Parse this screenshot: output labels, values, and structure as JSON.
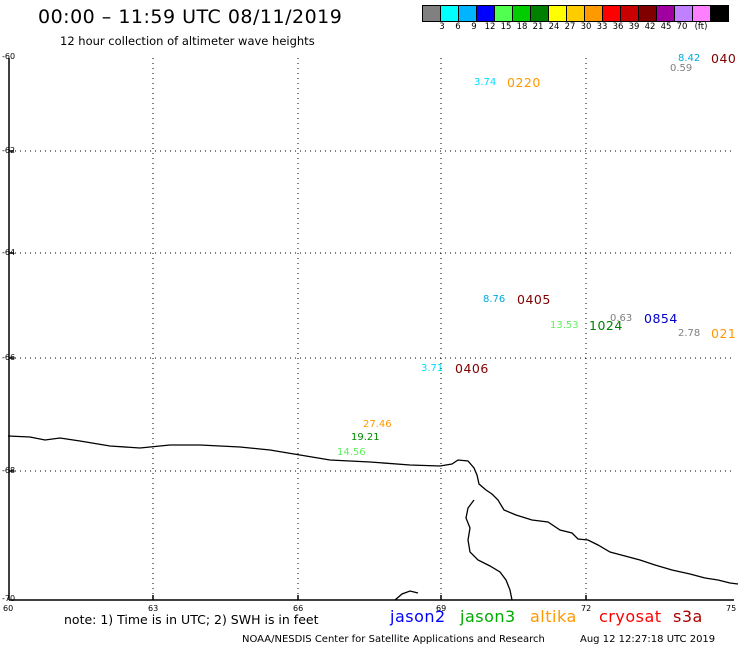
{
  "header": {
    "title": "00:00 – 11:59 UTC 08/11/2019",
    "subtitle": "12 hour collection of altimeter wave heights"
  },
  "legend": {
    "colors": [
      "#808080",
      "#00ffff",
      "#00b4ff",
      "#0000ff",
      "#50ff50",
      "#00cc00",
      "#008000",
      "#ffff00",
      "#ffcc00",
      "#ff9900",
      "#ff0000",
      "#c80000",
      "#800000",
      "#a000a0",
      "#c080ff",
      "#ff80ff",
      "#000000"
    ],
    "labels": [
      "3",
      "6",
      "9",
      "12",
      "15",
      "18",
      "21",
      "24",
      "27",
      "30",
      "33",
      "36",
      "39",
      "42",
      "45",
      "70",
      "(ft)"
    ]
  },
  "axes": {
    "lat_ticks": [
      "-60",
      "-62",
      "-64",
      "-66",
      "-68",
      "-70"
    ],
    "lon_ticks": [
      "60",
      "63",
      "66",
      "69",
      "72",
      "75"
    ]
  },
  "observations": [
    {
      "text": "8.42",
      "color": "#00aadd"
    },
    {
      "text": "0.59",
      "color": "#808080"
    },
    {
      "text": "3.74",
      "color": "#00ddff"
    },
    {
      "text": "8.76",
      "color": "#00aadd"
    },
    {
      "text": "0.63",
      "color": "#808080"
    },
    {
      "text": "2.78",
      "color": "#808080"
    },
    {
      "text": "13.53",
      "color": "#60ee60"
    },
    {
      "text": "3.71",
      "color": "#00ddff"
    },
    {
      "text": "27.46",
      "color": "#ff9900"
    },
    {
      "text": "19.21",
      "color": "#008800"
    },
    {
      "text": "14.56",
      "color": "#60ee60"
    }
  ],
  "passes": [
    {
      "text": "040",
      "color": "#800000"
    },
    {
      "text": "0220",
      "color": "#ff9900"
    },
    {
      "text": "0405",
      "color": "#800000"
    },
    {
      "text": "1024",
      "color": "#008000"
    },
    {
      "text": "0854",
      "color": "#0000cc"
    },
    {
      "text": "021",
      "color": "#ff9900"
    },
    {
      "text": "0406",
      "color": "#800000"
    }
  ],
  "footer": {
    "note": "note: 1) Time is in UTC; 2) SWH is in feet",
    "satellites": [
      {
        "name": "jason2",
        "color": "#0000ff"
      },
      {
        "name": "jason3",
        "color": "#00aa00"
      },
      {
        "name": "altika",
        "color": "#ff9900"
      },
      {
        "name": "cryosat",
        "color": "#ff0000"
      },
      {
        "name": "s3a",
        "color": "#aa0000"
      }
    ],
    "credit": "NOAA/NESDIS Center for Satellite Applications and Research",
    "stamp": "Aug 12 12:27:18 UTC 2019"
  }
}
